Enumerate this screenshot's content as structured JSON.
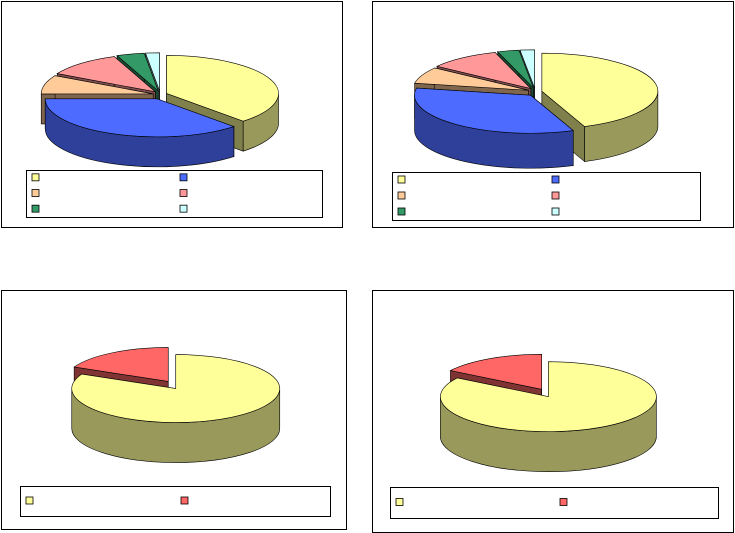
{
  "chart_data": [
    {
      "type": "pie",
      "values": [
        38,
        37,
        8,
        11,
        4,
        2
      ],
      "colors": [
        "#ffff99",
        "#4d6bff",
        "#ffcc99",
        "#ff9999",
        "#339966",
        "#ccffff"
      ]
    },
    {
      "type": "pie",
      "values": [
        44,
        34,
        7,
        10,
        3,
        2
      ],
      "colors": [
        "#ffff99",
        "#4d6bff",
        "#ffcc99",
        "#ff9999",
        "#339966",
        "#ccffff"
      ]
    },
    {
      "type": "pie",
      "values": [
        82,
        18
      ],
      "colors": [
        "#ffff99",
        "#ff6666"
      ]
    },
    {
      "type": "pie",
      "values": [
        84,
        16
      ],
      "colors": [
        "#ffff99",
        "#ff6666"
      ]
    }
  ]
}
